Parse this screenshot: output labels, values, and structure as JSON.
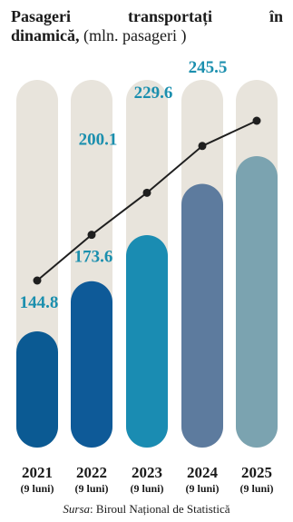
{
  "title": {
    "bold_words": [
      "Pasageri",
      "transportați",
      "în"
    ],
    "bold_line2": "dinamică,",
    "unit": "(mln. pasageri )"
  },
  "source": {
    "label": "Sursa",
    "text": ": Biroul Național de Statistică"
  },
  "colors": {
    "track": "#e8e4dc",
    "line": "#1f1f1f",
    "value_label": "#1b8fae"
  },
  "chart_data": {
    "type": "bar",
    "categories": [
      "2021",
      "2022",
      "2023",
      "2024",
      "2025"
    ],
    "category_sublabels": [
      "(9 luni)",
      "(9 luni)",
      "(9 luni)",
      "(9 luni)",
      "(9 luni)"
    ],
    "values": [
      144.8,
      173.6,
      200.1,
      229.6,
      245.5
    ],
    "bar_colors": [
      "#0b5a93",
      "#0e5a98",
      "#1a8cb2",
      "#5d7b9e",
      "#7ba3b0"
    ],
    "overlay": "line with markers connecting values",
    "title": "Pasageri transportați în dinamică, (mln. pasageri )"
  }
}
